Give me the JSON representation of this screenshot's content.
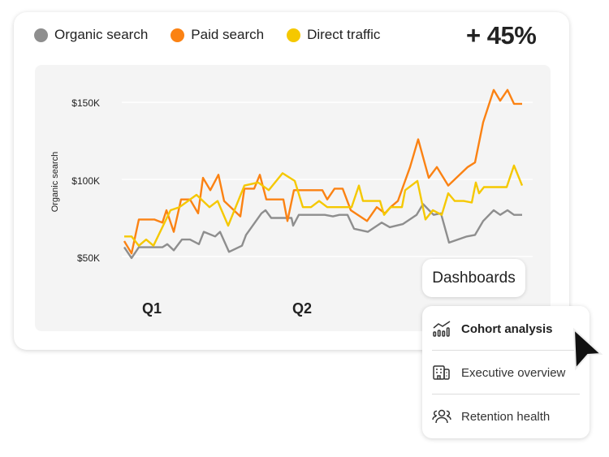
{
  "legend": [
    {
      "label": "Organic search",
      "color": "#8e8e8e"
    },
    {
      "label": "Paid search",
      "color": "#fb8213"
    },
    {
      "label": "Direct traffic",
      "color": "#f5c800"
    }
  ],
  "kpi": "+ 45%",
  "menu": {
    "button_label": "Dashboards",
    "items": [
      {
        "label": "Cohort analysis",
        "icon": "chart-growth-icon",
        "active": true
      },
      {
        "label": "Executive overview",
        "icon": "building-icon",
        "active": false
      },
      {
        "label": "Retention health",
        "icon": "people-group-icon",
        "active": false
      }
    ]
  },
  "chart_data": {
    "type": "line",
    "ylabel": "Organic search",
    "yticks": [
      "$150K",
      "$100K",
      "$50K"
    ],
    "ytick_values": [
      150,
      100,
      50
    ],
    "xticks": [
      "Q1",
      "Q2"
    ],
    "ylim": [
      40,
      165
    ],
    "grid": true,
    "legend_position": "top-left",
    "series": [
      {
        "name": "Organic search",
        "color": "#8e8e8e",
        "points": [
          [
            0,
            56
          ],
          [
            0.9,
            49
          ],
          [
            1.8,
            56
          ],
          [
            4.7,
            56
          ],
          [
            5.3,
            58
          ],
          [
            6.1,
            54
          ],
          [
            7.1,
            61
          ],
          [
            8.1,
            61
          ],
          [
            9.2,
            58
          ],
          [
            9.8,
            66
          ],
          [
            11.2,
            63
          ],
          [
            11.8,
            66
          ],
          [
            12.9,
            53
          ],
          [
            14.5,
            57
          ],
          [
            15,
            64
          ],
          [
            16.9,
            78
          ],
          [
            17.4,
            80
          ],
          [
            18.1,
            75
          ],
          [
            20.6,
            75
          ],
          [
            20.8,
            70
          ],
          [
            21.5,
            77
          ],
          [
            24.7,
            77
          ],
          [
            25.7,
            76
          ],
          [
            26.5,
            77
          ],
          [
            27.5,
            77
          ],
          [
            28.3,
            68
          ],
          [
            30,
            66
          ],
          [
            31.7,
            72
          ],
          [
            32.7,
            69
          ],
          [
            34.3,
            71
          ],
          [
            36,
            77
          ],
          [
            36.8,
            84
          ],
          [
            38.1,
            77
          ],
          [
            39,
            78
          ],
          [
            40,
            59
          ],
          [
            42.2,
            63
          ],
          [
            43.2,
            64
          ],
          [
            44.2,
            73
          ],
          [
            45.5,
            80
          ],
          [
            46.3,
            77
          ],
          [
            47.2,
            80
          ],
          [
            48,
            77
          ],
          [
            49,
            77
          ]
        ]
      },
      {
        "name": "Paid search",
        "color": "#fb8213",
        "points": [
          [
            0,
            60
          ],
          [
            0.9,
            52
          ],
          [
            1.8,
            74
          ],
          [
            3.7,
            74
          ],
          [
            4.7,
            72
          ],
          [
            5.2,
            80
          ],
          [
            6.1,
            66
          ],
          [
            7,
            87
          ],
          [
            8.1,
            87
          ],
          [
            9.1,
            78
          ],
          [
            9.7,
            101
          ],
          [
            10.6,
            93
          ],
          [
            11.6,
            103
          ],
          [
            12.3,
            86
          ],
          [
            14.3,
            76
          ],
          [
            14.8,
            94
          ],
          [
            16,
            94
          ],
          [
            16.7,
            103
          ],
          [
            17.5,
            87
          ],
          [
            19.6,
            87
          ],
          [
            20.1,
            73
          ],
          [
            20.9,
            93
          ],
          [
            24.4,
            93
          ],
          [
            25,
            87
          ],
          [
            25.9,
            94
          ],
          [
            26.9,
            94
          ],
          [
            27.9,
            80
          ],
          [
            29.9,
            73
          ],
          [
            31.1,
            82
          ],
          [
            32.1,
            78
          ],
          [
            32.8,
            82
          ],
          [
            33.7,
            86
          ],
          [
            35.2,
            108
          ],
          [
            36.2,
            126
          ],
          [
            37.5,
            101
          ],
          [
            38.5,
            108
          ],
          [
            39.9,
            96
          ],
          [
            42.3,
            108
          ],
          [
            43.2,
            111
          ],
          [
            44.2,
            137
          ],
          [
            45.5,
            158
          ],
          [
            46.3,
            151
          ],
          [
            47.2,
            158
          ],
          [
            48,
            149
          ],
          [
            49,
            149
          ]
        ]
      },
      {
        "name": "Direct traffic",
        "color": "#f5c800",
        "points": [
          [
            0,
            63
          ],
          [
            0.9,
            63
          ],
          [
            1.8,
            57
          ],
          [
            2.7,
            61
          ],
          [
            3.6,
            57
          ],
          [
            5.7,
            80
          ],
          [
            6.8,
            82
          ],
          [
            8.9,
            90
          ],
          [
            10.5,
            82
          ],
          [
            11.5,
            86
          ],
          [
            12.8,
            70
          ],
          [
            14.8,
            96
          ],
          [
            16.5,
            98
          ],
          [
            17.8,
            93
          ],
          [
            19.5,
            104
          ],
          [
            21,
            99
          ],
          [
            22,
            82
          ],
          [
            23,
            82
          ],
          [
            24,
            86
          ],
          [
            25,
            82
          ],
          [
            28,
            82
          ],
          [
            28.9,
            96
          ],
          [
            29.4,
            86
          ],
          [
            31.5,
            86
          ],
          [
            32,
            77
          ],
          [
            32.8,
            82
          ],
          [
            34.2,
            82
          ],
          [
            34.6,
            93
          ],
          [
            36.1,
            99
          ],
          [
            37.1,
            74
          ],
          [
            38,
            80
          ],
          [
            39.1,
            77
          ],
          [
            39.9,
            91
          ],
          [
            40.7,
            86
          ],
          [
            41.8,
            86
          ],
          [
            42.8,
            85
          ],
          [
            43.3,
            98
          ],
          [
            43.7,
            91
          ],
          [
            44.3,
            95
          ],
          [
            45.7,
            95
          ],
          [
            47.1,
            95
          ],
          [
            48,
            109
          ],
          [
            49,
            96
          ]
        ]
      }
    ]
  }
}
